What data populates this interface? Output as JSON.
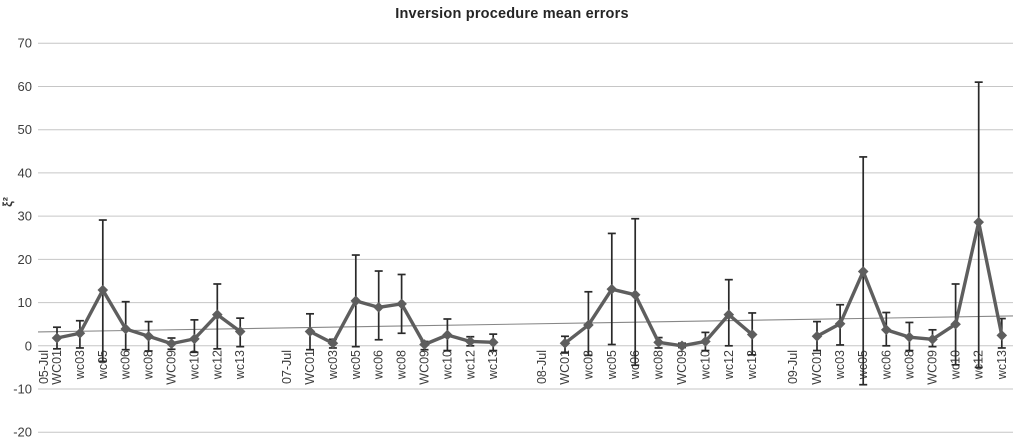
{
  "chart_data": {
    "type": "line",
    "title": "Inversion procedure mean errors",
    "ylabel": "ξ²",
    "xlabel": "",
    "ylim": [
      -20,
      70
    ],
    "yticks": [
      70,
      60,
      50,
      40,
      30,
      20,
      10,
      0,
      -10,
      -20
    ],
    "grid": true,
    "legend": false,
    "error_bars": true,
    "marker": "diamond",
    "trendline": {
      "start_value": 3.2,
      "end_value": 6.9
    },
    "colors": {
      "series": "#5e5e5e",
      "error_bar": "#2a2a2a",
      "gridline": "#c6c6c6",
      "trendline": "#878787",
      "tick_label": "#3d3d3d",
      "title": "#252525",
      "background": "#ffffff"
    },
    "groups": [
      {
        "date": "05-Jul",
        "points": [
          {
            "label": "WC01",
            "value": 1.8,
            "err_low": -0.7,
            "err_high": 4.3
          },
          {
            "label": "wc03",
            "value": 2.9,
            "err_low": -0.5,
            "err_high": 5.8
          },
          {
            "label": "wc05",
            "value": 12.9,
            "err_low": -3.6,
            "err_high": 29.1
          },
          {
            "label": "wc06",
            "value": 3.9,
            "err_low": -0.9,
            "err_high": 10.2
          },
          {
            "label": "wc08",
            "value": 2.2,
            "err_low": -1.2,
            "err_high": 5.6
          },
          {
            "label": "WC09",
            "value": 0.5,
            "err_low": -0.8,
            "err_high": 1.8
          },
          {
            "label": "wc10",
            "value": 1.6,
            "err_low": -1.5,
            "err_high": 6.0
          },
          {
            "label": "wc12",
            "value": 7.2,
            "err_low": -0.7,
            "err_high": 14.3
          },
          {
            "label": "wc13",
            "value": 3.3,
            "err_low": -0.2,
            "err_high": 6.4
          }
        ]
      },
      {
        "date": "07-Jul",
        "points": [
          {
            "label": "WC01",
            "value": 3.3,
            "err_low": -0.9,
            "err_high": 7.4
          },
          {
            "label": "wc03",
            "value": 0.6,
            "err_low": -0.5,
            "err_high": 1.5
          },
          {
            "label": "wc05",
            "value": 10.4,
            "err_low": -0.2,
            "err_high": 21.0
          },
          {
            "label": "wc06",
            "value": 8.9,
            "err_low": 1.4,
            "err_high": 17.3
          },
          {
            "label": "wc08",
            "value": 9.7,
            "err_low": 2.9,
            "err_high": 16.5
          },
          {
            "label": "WC09",
            "value": 0.3,
            "err_low": -0.9,
            "err_high": 1.0
          },
          {
            "label": "wc10",
            "value": 2.5,
            "err_low": -1.1,
            "err_high": 6.2
          },
          {
            "label": "wc12",
            "value": 1.0,
            "err_low": 0.0,
            "err_high": 2.1
          },
          {
            "label": "wc13",
            "value": 0.8,
            "err_low": -1.1,
            "err_high": 2.7
          }
        ]
      },
      {
        "date": "08-Jul",
        "points": [
          {
            "label": "WC01",
            "value": 0.6,
            "err_low": -1.5,
            "err_high": 2.2
          },
          {
            "label": "wc03",
            "value": 4.8,
            "err_low": -2.2,
            "err_high": 12.5
          },
          {
            "label": "wc05",
            "value": 13.1,
            "err_low": 0.3,
            "err_high": 26.0
          },
          {
            "label": "wc06",
            "value": 11.8,
            "err_low": -4.5,
            "err_high": 29.4
          },
          {
            "label": "wc08",
            "value": 0.8,
            "err_low": -0.5,
            "err_high": 1.9
          },
          {
            "label": "WC09",
            "value": 0.0,
            "err_low": -0.4,
            "err_high": 0.6
          },
          {
            "label": "wc10",
            "value": 1.0,
            "err_low": -1.1,
            "err_high": 3.1
          },
          {
            "label": "wc12",
            "value": 7.2,
            "err_low": 0.0,
            "err_high": 15.3
          },
          {
            "label": "wc13",
            "value": 2.6,
            "err_low": -2.1,
            "err_high": 7.6
          }
        ]
      },
      {
        "date": "09-Jul",
        "points": [
          {
            "label": "WC01",
            "value": 2.2,
            "err_low": -1.1,
            "err_high": 5.6
          },
          {
            "label": "wc03",
            "value": 5.1,
            "err_low": 0.2,
            "err_high": 9.5
          },
          {
            "label": "wc05",
            "value": 17.2,
            "err_low": -9.0,
            "err_high": 43.7
          },
          {
            "label": "wc06",
            "value": 3.7,
            "err_low": 0.0,
            "err_high": 7.7
          },
          {
            "label": "wc08",
            "value": 2.0,
            "err_low": -1.1,
            "err_high": 5.4
          },
          {
            "label": "WC09",
            "value": 1.5,
            "err_low": -0.2,
            "err_high": 3.7
          },
          {
            "label": "wc10",
            "value": 5.0,
            "err_low": -4.4,
            "err_high": 14.3
          },
          {
            "label": "wc12",
            "value": 28.6,
            "err_low": -5.0,
            "err_high": 61.0
          },
          {
            "label": "wc13",
            "value": 2.4,
            "err_low": -0.5,
            "err_high": 6.3
          }
        ]
      }
    ]
  }
}
